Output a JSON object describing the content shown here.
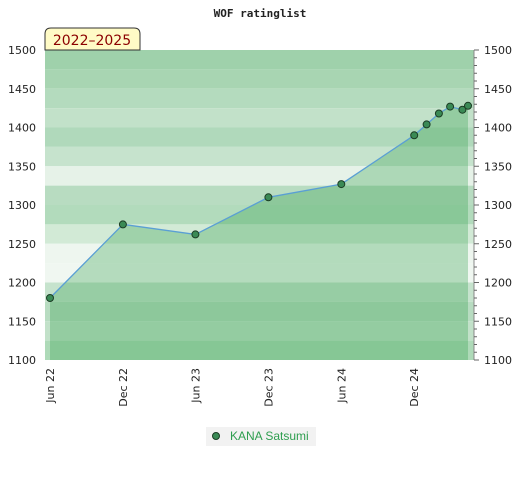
{
  "chart_data": {
    "type": "line",
    "title": "WOF ratinglist",
    "period_label": "2022–2025",
    "xlabel": "",
    "ylabel": "",
    "ylim": [
      1100,
      1500
    ],
    "y_ticks": [
      1100,
      1150,
      1200,
      1250,
      1300,
      1350,
      1400,
      1450,
      1500
    ],
    "x_range": [
      "2022-06-01",
      "2025-04-15"
    ],
    "x_ticks": [
      {
        "label": "Jun 22",
        "date": "2022-06-01"
      },
      {
        "label": "Dec 22",
        "date": "2022-12-01"
      },
      {
        "label": "Jun 23",
        "date": "2023-06-01"
      },
      {
        "label": "Dec 23",
        "date": "2023-12-01"
      },
      {
        "label": "Jun 24",
        "date": "2024-06-01"
      },
      {
        "label": "Dec 24",
        "date": "2024-12-01"
      }
    ],
    "grid": true,
    "legend_position": "bottom",
    "series": [
      {
        "name": "KANA Satsumi",
        "color": "#5a9fd4",
        "marker_color": "#3a8a55",
        "points": [
          {
            "date": "2022-06-01",
            "value": 1180
          },
          {
            "date": "2022-12-01",
            "value": 1275
          },
          {
            "date": "2023-06-01",
            "value": 1262
          },
          {
            "date": "2023-12-01",
            "value": 1310
          },
          {
            "date": "2024-06-01",
            "value": 1327
          },
          {
            "date": "2024-12-01",
            "value": 1390
          },
          {
            "date": "2025-01-01",
            "value": 1404
          },
          {
            "date": "2025-02-01",
            "value": 1418
          },
          {
            "date": "2025-03-01",
            "value": 1427
          },
          {
            "date": "2025-04-01",
            "value": 1423
          },
          {
            "date": "2025-04-15",
            "value": 1428
          }
        ]
      }
    ]
  }
}
